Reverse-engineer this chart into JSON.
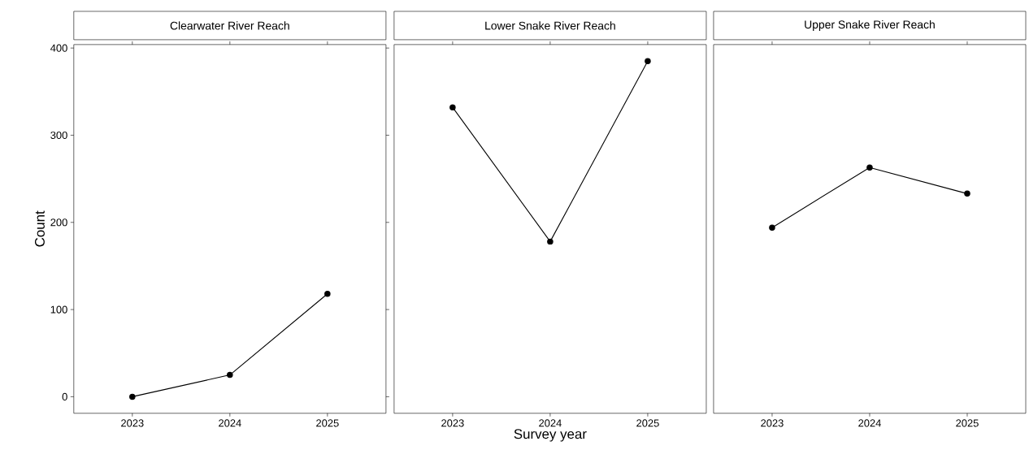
{
  "chart_data": [
    {
      "type": "line",
      "title": "Clearwater River Reach",
      "ylabel": "Count",
      "categories": [
        "2023",
        "2024",
        "2025"
      ],
      "values": [
        0,
        25,
        118
      ],
      "color": "#000000",
      "ylim": [
        -19,
        404
      ],
      "yticks": [
        0,
        100,
        200,
        300,
        400
      ],
      "marker": "circle",
      "line_style": "solid",
      "grid": false
    },
    {
      "type": "line",
      "title": "Lower Snake River Reach",
      "xlabel": "Survey year",
      "categories": [
        "2023",
        "2024",
        "2025"
      ],
      "values": [
        332,
        178,
        385
      ],
      "color": "#000000",
      "ylim": [
        -19,
        404
      ],
      "yticks": [
        0,
        100,
        200,
        300,
        400
      ],
      "marker": "circle",
      "line_style": "solid",
      "grid": false,
      "tick_labels": "x"
    },
    {
      "type": "line",
      "title": "Upper Snake River Reach",
      "categories": [
        "2023",
        "2024",
        "2025"
      ],
      "values": [
        194,
        263,
        233
      ],
      "color": "#000000",
      "ylim": [
        -19,
        404
      ],
      "yticks": [
        0,
        100,
        200,
        300,
        400
      ],
      "marker": "circle",
      "line_style": "solid",
      "grid": false,
      "tick_labels": "x"
    }
  ]
}
